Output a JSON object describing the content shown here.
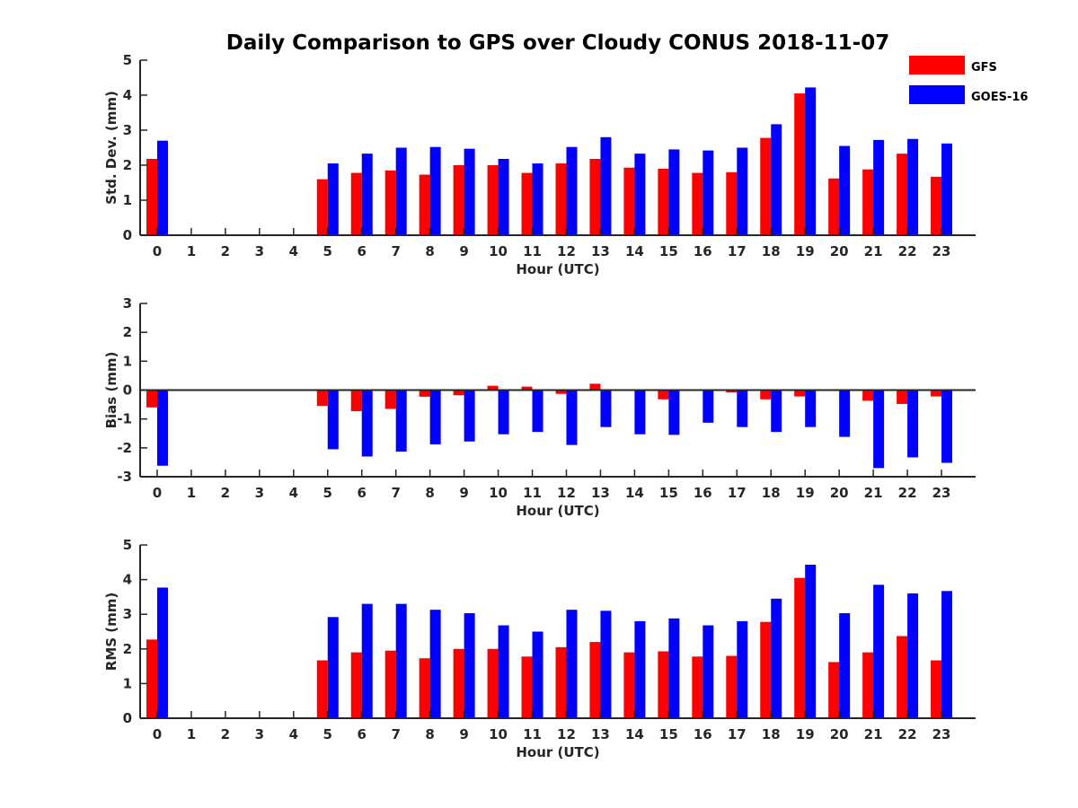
{
  "chart_data": [
    {
      "type": "bar",
      "title": "Daily Comparison to GPS over Cloudy CONUS 2018-11-07",
      "xlabel": "Hour (UTC)",
      "ylabel": "Std. Dev. (mm)",
      "ylim": [
        0,
        5
      ],
      "yticks": [
        "0",
        "1",
        "2",
        "3",
        "4",
        "5"
      ],
      "categories": [
        "0",
        "1",
        "2",
        "3",
        "4",
        "5",
        "6",
        "7",
        "8",
        "9",
        "10",
        "11",
        "12",
        "13",
        "14",
        "15",
        "16",
        "17",
        "18",
        "19",
        "20",
        "21",
        "22",
        "23"
      ],
      "legend_position": "top-right",
      "series": [
        {
          "name": "GFS",
          "color": "#ff0000",
          "values": [
            2.18,
            null,
            null,
            null,
            null,
            1.6,
            1.78,
            1.85,
            1.73,
            2.0,
            2.0,
            1.78,
            2.05,
            2.18,
            1.93,
            1.9,
            1.78,
            1.8,
            2.78,
            4.05,
            1.62,
            1.88,
            2.33,
            1.67
          ]
        },
        {
          "name": "GOES-16",
          "color": "#0000ff",
          "values": [
            2.7,
            null,
            null,
            null,
            null,
            2.05,
            2.33,
            2.5,
            2.52,
            2.47,
            2.18,
            2.05,
            2.52,
            2.8,
            2.33,
            2.45,
            2.42,
            2.5,
            3.17,
            4.22,
            2.55,
            2.72,
            2.75,
            2.62
          ]
        }
      ]
    },
    {
      "type": "bar",
      "xlabel": "Hour (UTC)",
      "ylabel": "Bias (mm)",
      "ylim": [
        -3,
        3
      ],
      "yticks": [
        "-3",
        "-2",
        "-1",
        "0",
        "1",
        "2",
        "3"
      ],
      "categories": [
        "0",
        "1",
        "2",
        "3",
        "4",
        "5",
        "6",
        "7",
        "8",
        "9",
        "10",
        "11",
        "12",
        "13",
        "14",
        "15",
        "16",
        "17",
        "18",
        "19",
        "20",
        "21",
        "22",
        "23"
      ],
      "series": [
        {
          "name": "GFS",
          "color": "#ff0000",
          "values": [
            -0.6,
            null,
            null,
            null,
            null,
            -0.55,
            -0.73,
            -0.65,
            -0.23,
            -0.18,
            0.15,
            0.12,
            -0.13,
            0.22,
            -0.03,
            -0.32,
            0.03,
            -0.08,
            -0.32,
            -0.22,
            0.0,
            -0.37,
            -0.48,
            -0.22
          ]
        },
        {
          "name": "GOES-16",
          "color": "#0000ff",
          "values": [
            -2.62,
            null,
            null,
            null,
            null,
            -2.05,
            -2.3,
            -2.13,
            -1.88,
            -1.78,
            -1.53,
            -1.45,
            -1.9,
            -1.28,
            -1.53,
            -1.55,
            -1.13,
            -1.28,
            -1.45,
            -1.28,
            -1.62,
            -2.7,
            -2.33,
            -2.52
          ]
        }
      ]
    },
    {
      "type": "bar",
      "xlabel": "Hour (UTC)",
      "ylabel": "RMS (mm)",
      "ylim": [
        0,
        5
      ],
      "yticks": [
        "0",
        "1",
        "2",
        "3",
        "4",
        "5"
      ],
      "categories": [
        "0",
        "1",
        "2",
        "3",
        "4",
        "5",
        "6",
        "7",
        "8",
        "9",
        "10",
        "11",
        "12",
        "13",
        "14",
        "15",
        "16",
        "17",
        "18",
        "19",
        "20",
        "21",
        "22",
        "23"
      ],
      "series": [
        {
          "name": "GFS",
          "color": "#ff0000",
          "values": [
            2.27,
            null,
            null,
            null,
            null,
            1.67,
            1.9,
            1.95,
            1.73,
            2.0,
            2.0,
            1.78,
            2.05,
            2.2,
            1.9,
            1.93,
            1.78,
            1.8,
            2.78,
            4.05,
            1.62,
            1.9,
            2.37,
            1.67
          ]
        },
        {
          "name": "GOES-16",
          "color": "#0000ff",
          "values": [
            3.77,
            null,
            null,
            null,
            null,
            2.92,
            3.3,
            3.3,
            3.13,
            3.03,
            2.68,
            2.5,
            3.13,
            3.1,
            2.8,
            2.88,
            2.68,
            2.8,
            3.45,
            4.43,
            3.03,
            3.85,
            3.6,
            3.67
          ]
        }
      ]
    }
  ]
}
